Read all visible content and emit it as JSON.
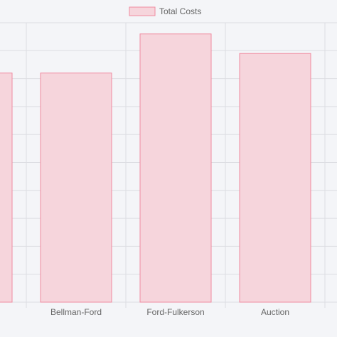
{
  "chart_data": {
    "type": "bar",
    "categories": [
      "",
      "Bellman-Ford",
      "Ford-Fulkerson",
      "Auction"
    ],
    "series": [
      {
        "name": "Total Costs",
        "values": [
          82,
          82,
          96,
          89
        ]
      }
    ],
    "ylim": [
      0,
      100
    ],
    "grid": true,
    "legend": "top",
    "colors": {
      "bar_fill": "#f6d5dc",
      "bar_stroke": "#f08aa0",
      "grid": "#dcdde2",
      "background": "#f4f5f8",
      "text": "#666666"
    }
  }
}
